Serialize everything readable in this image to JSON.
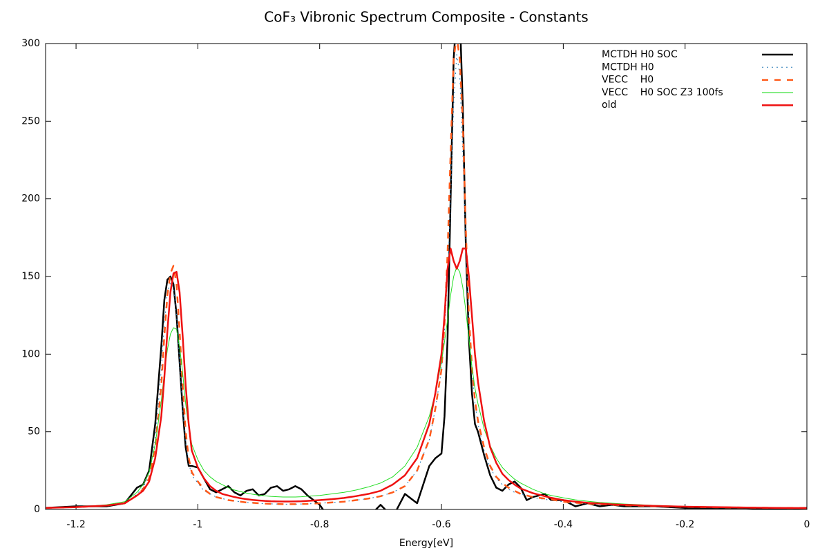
{
  "chart_data": {
    "type": "line",
    "title": "CoF₃ Vibronic Spectrum Composite - Constants",
    "x_label": "Energy[eV]",
    "xlim": [
      -1.25,
      0
    ],
    "xticks": [
      -1.2,
      -1,
      -0.8,
      -0.6,
      -0.4,
      -0.2,
      0
    ],
    "ylim": [
      0,
      300
    ],
    "yticks": [
      0,
      50,
      100,
      150,
      200,
      250,
      300
    ],
    "legend": "top-right",
    "x": [
      -1.25,
      -1.2,
      -1.15,
      -1.12,
      -1.1,
      -1.09,
      -1.08,
      -1.07,
      -1.06,
      -1.055,
      -1.05,
      -1.045,
      -1.04,
      -1.035,
      -1.03,
      -1.025,
      -1.02,
      -1.015,
      -1.01,
      -1.0,
      -0.99,
      -0.98,
      -0.97,
      -0.96,
      -0.95,
      -0.94,
      -0.93,
      -0.92,
      -0.91,
      -0.9,
      -0.89,
      -0.88,
      -0.87,
      -0.86,
      -0.85,
      -0.84,
      -0.83,
      -0.82,
      -0.8,
      -0.78,
      -0.76,
      -0.74,
      -0.72,
      -0.7,
      -0.68,
      -0.66,
      -0.64,
      -0.62,
      -0.61,
      -0.6,
      -0.595,
      -0.59,
      -0.585,
      -0.58,
      -0.575,
      -0.57,
      -0.565,
      -0.56,
      -0.555,
      -0.55,
      -0.545,
      -0.54,
      -0.53,
      -0.52,
      -0.51,
      -0.5,
      -0.49,
      -0.48,
      -0.47,
      -0.46,
      -0.45,
      -0.44,
      -0.43,
      -0.42,
      -0.4,
      -0.38,
      -0.36,
      -0.34,
      -0.32,
      -0.3,
      -0.25,
      -0.2,
      -0.15,
      -0.1,
      -0.05,
      0
    ],
    "series": [
      {
        "name": "MCTDH H0 SOC",
        "color": "#000000",
        "style": "solid-thick",
        "values": [
          1,
          2,
          2,
          4,
          14,
          16,
          25,
          55,
          105,
          135,
          148,
          150,
          145,
          125,
          95,
          65,
          40,
          28,
          28,
          27,
          20,
          13,
          11,
          13,
          15,
          11,
          9,
          12,
          13,
          9,
          10,
          14,
          15,
          12,
          13,
          15,
          13,
          9,
          3,
          -8,
          -15,
          -10,
          -5,
          3,
          -5,
          10,
          4,
          28,
          33,
          36,
          60,
          110,
          200,
          290,
          320,
          320,
          260,
          170,
          110,
          75,
          55,
          50,
          35,
          22,
          14,
          12,
          16,
          18,
          14,
          6,
          8,
          9,
          10,
          6,
          6,
          2,
          4,
          2,
          3,
          2,
          2,
          1,
          1,
          1,
          0,
          1
        ]
      },
      {
        "name": "MCTDH H0",
        "color": "#1f77b4",
        "style": "dotted",
        "values": [
          1,
          1.5,
          2.5,
          4,
          10,
          14,
          22,
          45,
          90,
          120,
          140,
          146,
          143,
          125,
          95,
          65,
          43,
          30,
          22,
          17,
          12,
          10,
          8,
          7,
          6,
          5.5,
          5,
          4.5,
          4.3,
          4,
          3.8,
          3.6,
          3.5,
          3.4,
          3.4,
          3.4,
          3.5,
          3.6,
          4,
          4.5,
          5,
          6,
          7,
          8.5,
          11,
          15,
          25,
          45,
          65,
          90,
          115,
          150,
          200,
          260,
          293,
          280,
          230,
          170,
          120,
          88,
          68,
          55,
          38,
          27,
          20,
          16,
          13,
          11,
          10,
          9,
          8,
          7,
          6.5,
          6,
          5,
          4.3,
          3.8,
          3.4,
          3,
          2.7,
          2.1,
          1.7,
          1.4,
          1.2,
          1,
          0.9
        ]
      },
      {
        "name": "VECC    H0",
        "color": "#ff5a1a",
        "style": "dashed",
        "values": [
          1,
          1.5,
          2.5,
          4,
          9,
          13,
          20,
          40,
          80,
          112,
          138,
          152,
          157,
          145,
          115,
          80,
          50,
          33,
          24,
          18,
          13,
          10,
          8,
          7,
          6,
          5.5,
          5,
          4.5,
          4.3,
          4,
          3.8,
          3.6,
          3.5,
          3.4,
          3.4,
          3.4,
          3.5,
          3.6,
          4,
          4.5,
          5,
          6,
          7,
          8.5,
          11,
          15,
          25,
          45,
          65,
          90,
          120,
          165,
          230,
          290,
          305,
          290,
          250,
          180,
          125,
          92,
          70,
          57,
          40,
          28,
          21,
          17,
          14,
          12,
          10,
          9,
          8,
          7.5,
          7,
          6.5,
          5,
          4.3,
          3.8,
          3.4,
          3,
          2.7,
          2.1,
          1.7,
          1.4,
          1.2,
          1,
          0.9
        ]
      },
      {
        "name": "VECC    H0 SOC Z3 100fs",
        "color": "#22dd22",
        "style": "solid-thin",
        "values": [
          1,
          1.5,
          3,
          5,
          11,
          16,
          24,
          42,
          70,
          88,
          103,
          113,
          117,
          116,
          105,
          88,
          68,
          53,
          42,
          32,
          25,
          21,
          18,
          16,
          14,
          12.5,
          11.5,
          10.5,
          9.8,
          9.2,
          8.8,
          8.4,
          8.2,
          8,
          8,
          8,
          8.2,
          8.5,
          9,
          10,
          11,
          12.5,
          14.5,
          17,
          21,
          28,
          40,
          60,
          75,
          95,
          108,
          122,
          138,
          150,
          156,
          153,
          143,
          128,
          110,
          92,
          78,
          68,
          52,
          41,
          33,
          27,
          23,
          19.5,
          17,
          15,
          13,
          11.5,
          10,
          9,
          7.5,
          6.2,
          5.3,
          4.5,
          4,
          3.5,
          2.6,
          2,
          1.6,
          1.3,
          1.1,
          1
        ]
      },
      {
        "name": "old",
        "color": "#ee1111",
        "style": "solid-thick",
        "values": [
          1,
          1.5,
          2.5,
          4,
          9,
          12,
          18,
          33,
          60,
          85,
          115,
          140,
          152,
          153,
          140,
          112,
          80,
          55,
          38,
          27,
          20,
          15,
          12,
          10,
          9,
          8,
          7.2,
          6.6,
          6.1,
          5.8,
          5.5,
          5.3,
          5.2,
          5.1,
          5.1,
          5.2,
          5.3,
          5.5,
          6,
          6.6,
          7.4,
          8.6,
          10,
          12,
          16,
          22,
          33,
          55,
          75,
          100,
          125,
          155,
          168,
          160,
          155,
          160,
          168,
          168,
          150,
          125,
          100,
          82,
          57,
          40,
          30,
          23,
          19,
          16,
          13.5,
          12,
          10.5,
          9.5,
          8.5,
          7.5,
          6,
          5,
          4.3,
          3.8,
          3.3,
          3,
          2.3,
          1.8,
          1.5,
          1.2,
          1,
          0.9
        ]
      }
    ]
  }
}
